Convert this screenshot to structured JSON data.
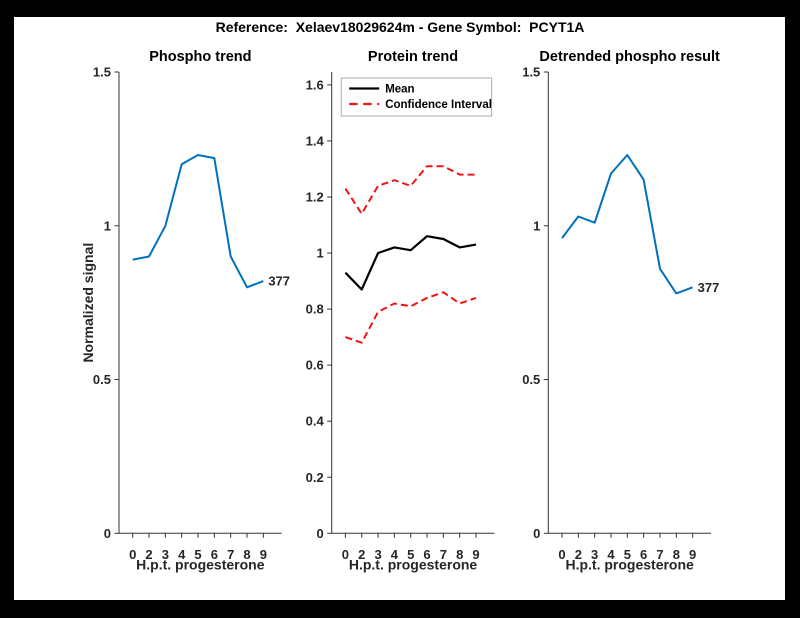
{
  "figure_title": "Reference:  Xelaev18029624m - Gene Symbol:  PCYT1A",
  "colors": {
    "matlab_blue": "#0072BD",
    "ci_red": "#F01414",
    "mean_black": "#000000",
    "axis": "#333333",
    "tick_text": "#262626",
    "background": "#FFFFFF",
    "frame": "#000000"
  },
  "chart_data": [
    {
      "id": "phospho-trend",
      "type": "line",
      "title": "Phospho trend",
      "xlabel": "H.p.t. progesterone",
      "ylabel": "Normalized signal",
      "x_tick_labels": [
        "0",
        "2",
        "3",
        "4",
        "5",
        "6",
        "7",
        "8",
        "9"
      ],
      "y_tick_values": [
        0,
        0.5,
        1,
        1.5
      ],
      "y_tick_labels": [
        "0",
        "0.5",
        "1",
        "1.5"
      ],
      "ylim": [
        0,
        1.5
      ],
      "grid": false,
      "legend": null,
      "end_label": "377",
      "series": [
        {
          "name": "phospho-signal",
          "color": "#0072BD",
          "style": "solid",
          "values": [
            0.89,
            0.9,
            1.0,
            1.2,
            1.23,
            1.22,
            0.9,
            0.8,
            0.82
          ]
        }
      ]
    },
    {
      "id": "protein-trend",
      "type": "line",
      "title": "Protein trend",
      "xlabel": "H.p.t. progesterone",
      "ylabel": "",
      "x_tick_labels": [
        "0",
        "2",
        "3",
        "4",
        "5",
        "6",
        "7",
        "8",
        "9"
      ],
      "y_tick_values": [
        0,
        0.2,
        0.4,
        0.6,
        0.8,
        1,
        1.2,
        1.4,
        1.6
      ],
      "y_tick_labels": [
        "0",
        "0.2",
        "0.4",
        "0.6",
        "0.8",
        "1",
        "1.2",
        "1.4",
        "1.6"
      ],
      "ylim": [
        0,
        1.646
      ],
      "grid": false,
      "legend": {
        "position": "northwest-inside",
        "items": [
          {
            "label": "Mean",
            "series": "mean"
          },
          {
            "label": "Confidence Interval",
            "series": "confidence-interval-upper"
          }
        ]
      },
      "end_label": null,
      "series": [
        {
          "name": "mean",
          "color": "#000000",
          "style": "solid",
          "values": [
            0.93,
            0.87,
            1.0,
            1.02,
            1.01,
            1.06,
            1.05,
            1.02,
            1.03
          ]
        },
        {
          "name": "confidence-interval-upper",
          "color": "#F01414",
          "style": "dashed",
          "values": [
            1.23,
            1.14,
            1.24,
            1.26,
            1.24,
            1.31,
            1.31,
            1.28,
            1.28
          ]
        },
        {
          "name": "confidence-interval-lower",
          "color": "#F01414",
          "style": "dashed",
          "values": [
            0.7,
            0.68,
            0.79,
            0.82,
            0.81,
            0.84,
            0.86,
            0.82,
            0.84
          ]
        }
      ]
    },
    {
      "id": "detrended-phospho-result",
      "type": "line",
      "title": "Detrended phospho result",
      "xlabel": "H.p.t. progesterone",
      "ylabel": "",
      "x_tick_labels": [
        "0",
        "2",
        "3",
        "4",
        "5",
        "6",
        "7",
        "8",
        "9"
      ],
      "y_tick_values": [
        0,
        0.5,
        1,
        1.5
      ],
      "y_tick_labels": [
        "0",
        "0.5",
        "1",
        "1.5"
      ],
      "ylim": [
        0,
        1.5
      ],
      "grid": false,
      "legend": null,
      "end_label": "377",
      "series": [
        {
          "name": "detrended-phospho-signal",
          "color": "#0072BD",
          "style": "solid",
          "values": [
            0.96,
            1.03,
            1.01,
            1.17,
            1.23,
            1.15,
            0.86,
            0.78,
            0.8
          ]
        }
      ]
    }
  ]
}
